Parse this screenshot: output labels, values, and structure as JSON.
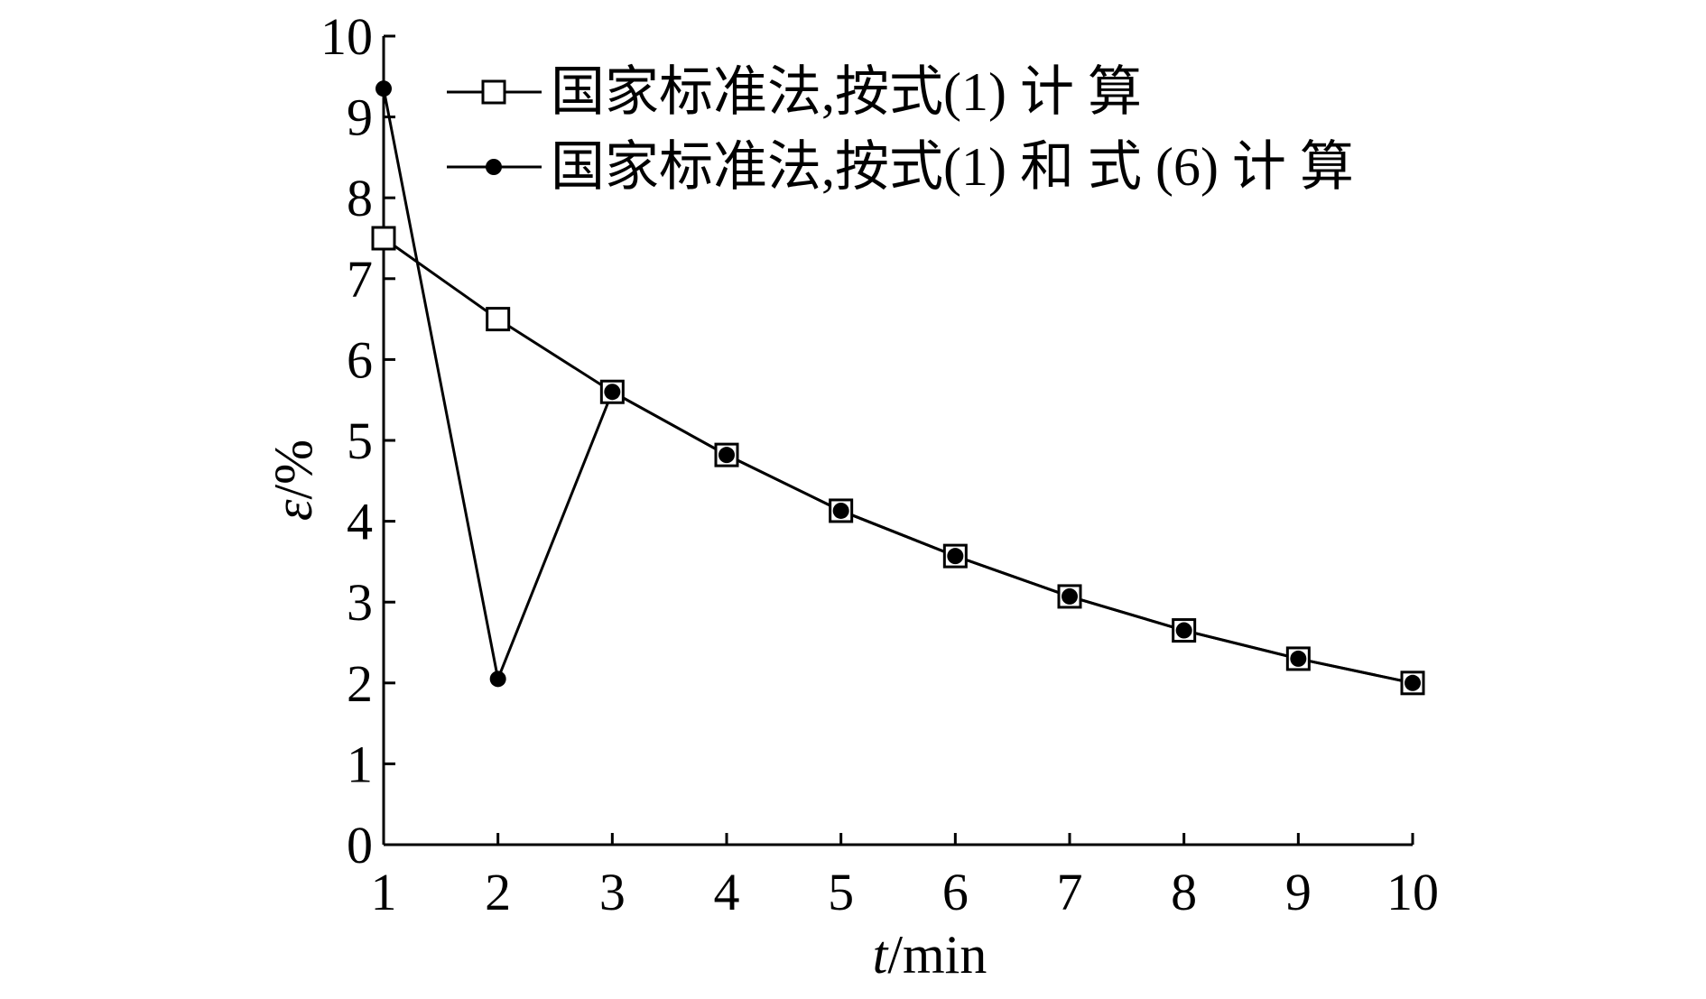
{
  "chart_data": {
    "type": "line",
    "xlabel_var": "t",
    "xlabel_unit": "/min",
    "ylabel_var": "ε",
    "ylabel_unit": "/%",
    "xlim": [
      1,
      10
    ],
    "ylim": [
      0,
      10
    ],
    "x_ticks": [
      "1",
      "2",
      "3",
      "4",
      "5",
      "6",
      "7",
      "8",
      "9",
      "10"
    ],
    "y_ticks": [
      "0",
      "1",
      "2",
      "3",
      "4",
      "5",
      "6",
      "7",
      "8",
      "9",
      "10"
    ],
    "grid": false,
    "legend_position": "top-right",
    "x": [
      1,
      2,
      3,
      4,
      5,
      6,
      7,
      8,
      9,
      10
    ],
    "series": [
      {
        "name": "国家标准法,按式(1) 计 算",
        "marker": "open-square",
        "values": [
          7.5,
          6.5,
          5.6,
          4.82,
          4.13,
          3.57,
          3.07,
          2.65,
          2.3,
          2.0
        ]
      },
      {
        "name": "国家标准法,按式(1) 和 式 (6) 计 算",
        "marker": "filled-circle",
        "values": [
          9.35,
          2.05,
          5.6,
          4.82,
          4.13,
          3.57,
          3.07,
          2.65,
          2.3,
          2.0
        ]
      }
    ]
  }
}
